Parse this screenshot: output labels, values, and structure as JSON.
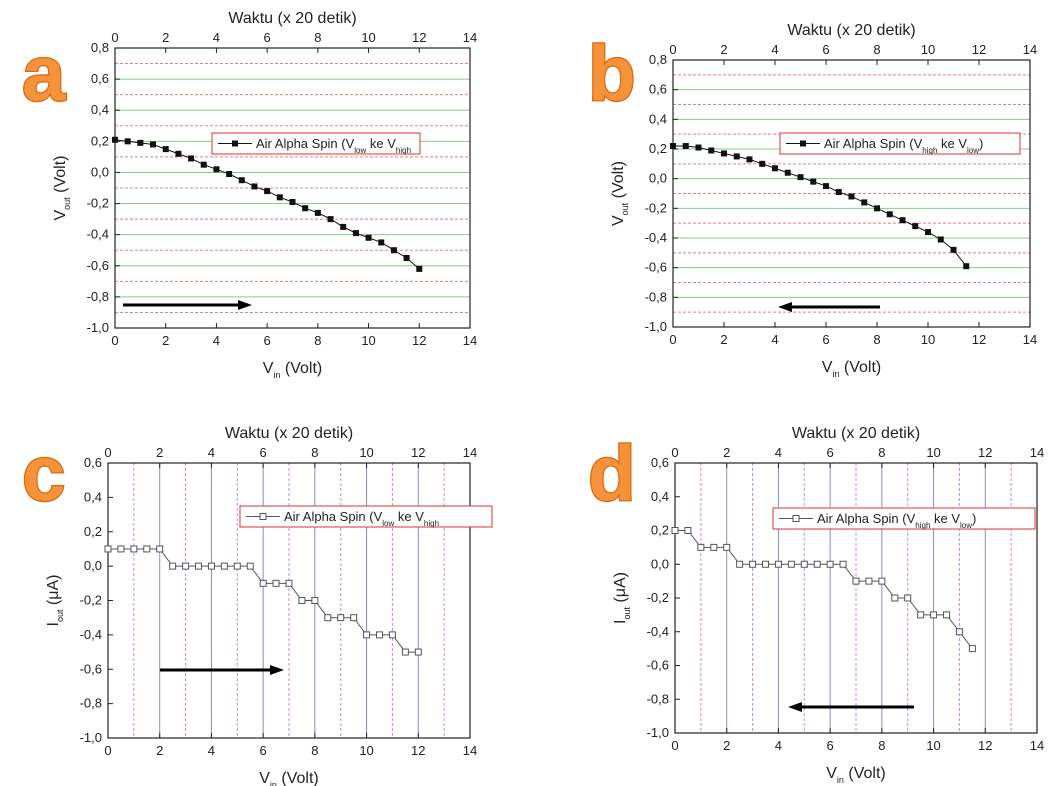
{
  "chart_data": [
    {
      "type": "line",
      "panel_label": "a",
      "x2label": "Waktu (x 20 detik)",
      "xlabel": [
        "V",
        "in",
        " (Volt)"
      ],
      "ylabel": [
        "V",
        "out",
        " (Volt)"
      ],
      "xlim": [
        0,
        14
      ],
      "xticks": [
        0,
        2,
        4,
        6,
        8,
        10,
        12,
        14
      ],
      "x2lim": [
        0,
        14
      ],
      "x2ticks": [
        0,
        2,
        4,
        6,
        8,
        10,
        12,
        14
      ],
      "ylim": [
        -1,
        0.8
      ],
      "yticks": [
        {
          "value": -1,
          "label": "-1,0"
        },
        {
          "value": -0.8,
          "label": "-0,8"
        },
        {
          "value": -0.6,
          "label": "-0,6"
        },
        {
          "value": -0.4,
          "label": "-0,4"
        },
        {
          "value": -0.2,
          "label": "-0,2"
        },
        {
          "value": 0,
          "label": "0,0"
        },
        {
          "value": 0.2,
          "label": "0,2"
        },
        {
          "value": 0.4,
          "label": "0,4"
        },
        {
          "value": 0.6,
          "label": "0,6"
        },
        {
          "value": 0.8,
          "label": "0,8"
        }
      ],
      "grid": "horizontal",
      "grid_color": "#86cc86",
      "minor_grid": true,
      "minor_grid_color": "#f07a7a",
      "arrow": "right",
      "x": [
        0,
        0.5,
        1,
        1.5,
        2,
        2.5,
        3,
        3.5,
        4,
        4.5,
        5,
        5.5,
        6,
        6.5,
        7,
        7.5,
        8,
        8.5,
        9,
        9.5,
        10,
        10.5,
        11,
        11.5,
        12
      ],
      "series": [
        {
          "name": [
            "Air Alpha Spin (V",
            "low",
            " ke V",
            "high"
          ],
          "color": "#111111",
          "marker": "filled-square",
          "values": [
            0.21,
            0.2,
            0.19,
            0.18,
            0.15,
            0.12,
            0.09,
            0.05,
            0.02,
            -0.01,
            -0.05,
            -0.09,
            -0.12,
            -0.16,
            -0.19,
            -0.23,
            -0.26,
            -0.3,
            -0.35,
            -0.39,
            -0.42,
            -0.45,
            -0.5,
            -0.55,
            -0.62
          ]
        }
      ]
    },
    {
      "type": "line",
      "panel_label": "b",
      "x2label": "Waktu (x 20 detik)",
      "xlabel": [
        "V",
        "in",
        " (Volt)"
      ],
      "ylabel": [
        "V",
        "out",
        " (Volt)"
      ],
      "xlim": [
        0,
        14
      ],
      "xticks": [
        0,
        2,
        4,
        6,
        8,
        10,
        12,
        14
      ],
      "x2lim": [
        0,
        14
      ],
      "x2ticks": [
        0,
        2,
        4,
        6,
        8,
        10,
        12,
        14
      ],
      "ylim": [
        -1,
        0.8
      ],
      "yticks": [
        {
          "value": -1,
          "label": "-1,0"
        },
        {
          "value": -0.8,
          "label": "-0,8"
        },
        {
          "value": -0.6,
          "label": "-0,6"
        },
        {
          "value": -0.4,
          "label": "-0,4"
        },
        {
          "value": -0.2,
          "label": "-0,2"
        },
        {
          "value": 0,
          "label": "0,0"
        },
        {
          "value": 0.2,
          "label": "0,2"
        },
        {
          "value": 0.4,
          "label": "0,4"
        },
        {
          "value": 0.6,
          "label": "0,6"
        },
        {
          "value": 0.8,
          "label": "0,8"
        }
      ],
      "grid": "horizontal",
      "grid_color": "#86cc86",
      "minor_grid": true,
      "minor_grid_color": "#f07a7a",
      "arrow": "left",
      "x": [
        0,
        0.5,
        1,
        1.5,
        2,
        2.5,
        3,
        3.5,
        4,
        4.5,
        5,
        5.5,
        6,
        6.5,
        7,
        7.5,
        8,
        8.5,
        9,
        9.5,
        10,
        10.5,
        11,
        11.5
      ],
      "series": [
        {
          "name": [
            "Air Alpha Spin (V",
            "high",
            " ke V",
            "low",
            ")"
          ],
          "color": "#111111",
          "marker": "filled-square",
          "values": [
            0.22,
            0.22,
            0.21,
            0.19,
            0.17,
            0.15,
            0.13,
            0.1,
            0.07,
            0.04,
            0.01,
            -0.02,
            -0.05,
            -0.09,
            -0.12,
            -0.16,
            -0.2,
            -0.24,
            -0.28,
            -0.32,
            -0.36,
            -0.41,
            -0.48,
            -0.59
          ]
        }
      ]
    },
    {
      "type": "line",
      "panel_label": "c",
      "x2label": "Waktu (x 20 detik)",
      "xlabel": [
        "V",
        "in",
        " (Volt)"
      ],
      "ylabel": [
        "I",
        "out",
        " (μA)"
      ],
      "xlim": [
        0,
        14
      ],
      "xticks": [
        0,
        2,
        4,
        6,
        8,
        10,
        12,
        14
      ],
      "x2lim": [
        0,
        14
      ],
      "x2ticks": [
        0,
        2,
        4,
        6,
        8,
        10,
        12,
        14
      ],
      "ylim": [
        -1,
        0.6
      ],
      "yticks": [
        {
          "value": -1,
          "label": "-1,0"
        },
        {
          "value": -0.8,
          "label": "-0,8"
        },
        {
          "value": -0.6,
          "label": "-0,6"
        },
        {
          "value": -0.4,
          "label": "-0,4"
        },
        {
          "value": -0.2,
          "label": "-0,2"
        },
        {
          "value": 0,
          "label": "0,0"
        },
        {
          "value": 0.2,
          "label": "0,2"
        },
        {
          "value": 0.4,
          "label": "0,4"
        },
        {
          "value": 0.6,
          "label": "0,6"
        }
      ],
      "grid": "vertical",
      "grid_color": "#8888d4",
      "minor_grid": true,
      "minor_grid_color": "#c48ae8",
      "arrow": "right",
      "x": [
        0,
        0.5,
        1,
        1.5,
        2,
        2.5,
        3,
        3.5,
        4,
        4.5,
        5,
        5.5,
        6,
        6.5,
        7,
        7.5,
        8,
        8.5,
        9,
        9.5,
        10,
        10.5,
        11,
        11.5,
        12
      ],
      "series": [
        {
          "name": [
            "Air Alpha Spin (V",
            "low",
            " ke V",
            "high"
          ],
          "color": "#555555",
          "marker": "open-square",
          "values": [
            0.1,
            0.1,
            0.1,
            0.1,
            0.1,
            0,
            0,
            0,
            0,
            0,
            0,
            0,
            -0.1,
            -0.1,
            -0.1,
            -0.2,
            -0.2,
            -0.3,
            -0.3,
            -0.3,
            -0.4,
            -0.4,
            -0.4,
            -0.5,
            -0.5
          ]
        }
      ]
    },
    {
      "type": "line",
      "panel_label": "d",
      "x2label": "Waktu (x 20 detik)",
      "xlabel": [
        "V",
        "in",
        " (Volt)"
      ],
      "ylabel": [
        "I",
        "out",
        " (μA)"
      ],
      "xlim": [
        0,
        14
      ],
      "xticks": [
        0,
        2,
        4,
        6,
        8,
        10,
        12,
        14
      ],
      "x2lim": [
        0,
        14
      ],
      "x2ticks": [
        0,
        2,
        4,
        6,
        8,
        10,
        12,
        14
      ],
      "ylim": [
        -1,
        0.6
      ],
      "yticks": [
        {
          "value": -1,
          "label": "-1,0"
        },
        {
          "value": -0.8,
          "label": "-0,8"
        },
        {
          "value": -0.6,
          "label": "-0,6"
        },
        {
          "value": -0.4,
          "label": "-0,4"
        },
        {
          "value": -0.2,
          "label": "-0,2"
        },
        {
          "value": 0,
          "label": "0,0"
        },
        {
          "value": 0.2,
          "label": "0,2"
        },
        {
          "value": 0.4,
          "label": "0,4"
        },
        {
          "value": 0.6,
          "label": "0,6"
        }
      ],
      "grid": "vertical",
      "grid_color": "#8888d4",
      "minor_grid": true,
      "minor_grid_color": "#c48ae8",
      "arrow": "left",
      "x": [
        0,
        0.5,
        1,
        1.5,
        2,
        2.5,
        3,
        3.5,
        4,
        4.5,
        5,
        5.5,
        6,
        6.5,
        7,
        7.5,
        8,
        8.5,
        9,
        9.5,
        10,
        10.5,
        11,
        11.5
      ],
      "series": [
        {
          "name": [
            "Air Alpha Spin (V",
            "high",
            " ke V",
            "low",
            ")"
          ],
          "color": "#555555",
          "marker": "open-square",
          "values": [
            0.2,
            0.2,
            0.1,
            0.1,
            0.1,
            0,
            0,
            0,
            0,
            0,
            0,
            0,
            0,
            0,
            -0.1,
            -0.1,
            -0.1,
            -0.2,
            -0.2,
            -0.3,
            -0.3,
            -0.3,
            -0.4,
            -0.5
          ]
        }
      ]
    }
  ]
}
